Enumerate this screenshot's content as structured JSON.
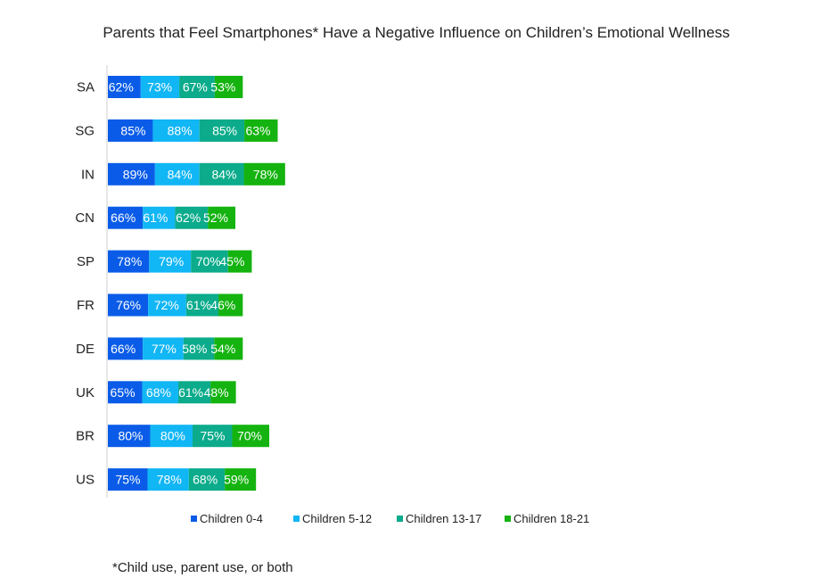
{
  "chart_data": {
    "type": "bar",
    "orientation": "horizontal",
    "stacked": true,
    "title": "Parents that Feel Smartphones* Have a Negative Influence on Children’s Emotional Wellness",
    "categories": [
      "SA",
      "SG",
      "IN",
      "CN",
      "SP",
      "FR",
      "DE",
      "UK",
      "BR",
      "US"
    ],
    "series": [
      {
        "name": "Children 0-4",
        "color": "#0a5ce8",
        "values": [
          62,
          85,
          89,
          66,
          78,
          76,
          66,
          65,
          80,
          75
        ],
        "labels": [
          "62%",
          "85%",
          "89%",
          "66%",
          "78%",
          "76%",
          "66%",
          "65%",
          "80%",
          "75%"
        ]
      },
      {
        "name": "Children 5-12",
        "color": "#11b6f5",
        "values": [
          73,
          88,
          84,
          61,
          79,
          72,
          77,
          68,
          80,
          78
        ],
        "labels": [
          "73%",
          "88%",
          "84%",
          "61%",
          "79%",
          "72%",
          "77%",
          "68%",
          "80%",
          "78%"
        ]
      },
      {
        "name": "Children 13-17",
        "color": "#0bab8b",
        "values": [
          67,
          85,
          84,
          62,
          70,
          61,
          58,
          61,
          75,
          68
        ],
        "labels": [
          "67%",
          "85%",
          "84%",
          "62%",
          "70%",
          "61%",
          "58%",
          "61%",
          "75%",
          "68%"
        ]
      },
      {
        "name": "Children 18-21",
        "color": "#14b30f",
        "values": [
          53,
          63,
          78,
          52,
          45,
          46,
          54,
          48,
          70,
          59
        ],
        "labels": [
          "53%",
          "63%",
          "78%",
          "52%",
          "45%",
          "46%",
          "54%",
          "48%",
          "70%",
          "59%"
        ]
      }
    ],
    "grid": false,
    "legend": "bottom"
  },
  "footnote": "*Child use, parent use, or both"
}
